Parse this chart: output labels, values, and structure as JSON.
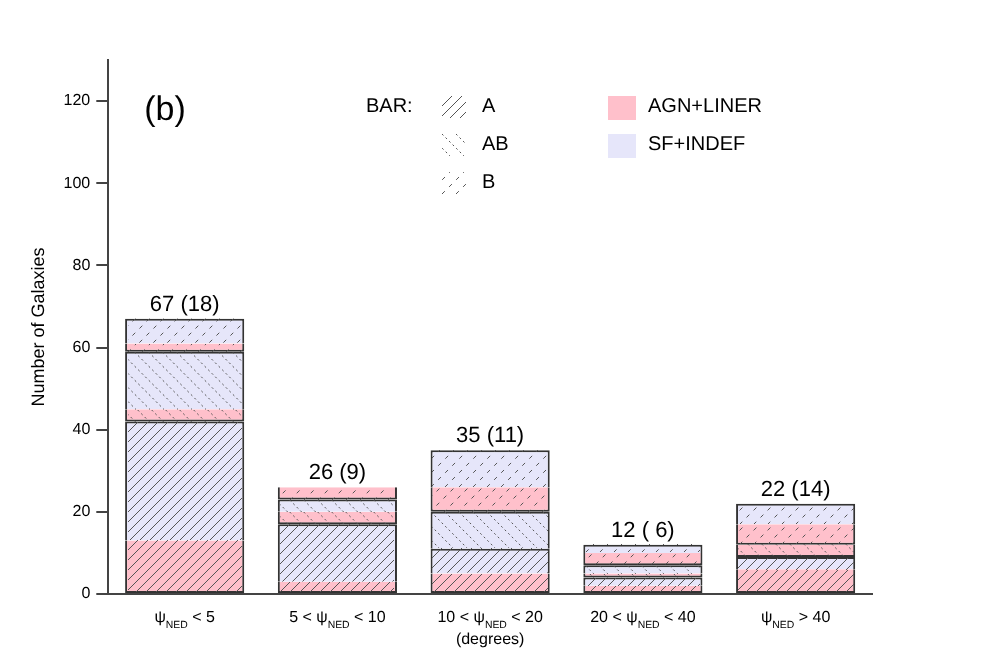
{
  "chart_data": {
    "type": "bar",
    "title": "(b)",
    "ylabel": "Number of Galaxies",
    "xlabel": "(degrees)",
    "categories": [
      "ψ$_{NED}$ < 5",
      "5 < ψ$_{NED}$ < 10",
      "10 < ψ$_{NED}$ < 20",
      "20 < ψ$_{NED}$ < 40",
      "ψ$_{NED}$ > 40"
    ],
    "stacked": true,
    "series": [
      {
        "color": "#ffc0cb",
        "values": [
          13,
          3,
          5,
          2,
          6
        ]
      },
      {
        "color": "#e6e6fa",
        "values": [
          29,
          14,
          6,
          2,
          3
        ]
      },
      {
        "color": "#ffc0cb",
        "values": [
          3,
          3,
          0,
          1,
          3
        ]
      },
      {
        "color": "#e6e6fa",
        "values": [
          14,
          3,
          9,
          2,
          0
        ]
      },
      {
        "color": "#ffc0cb",
        "values": [
          2,
          3,
          6,
          3,
          5
        ]
      },
      {
        "color": "#e6e6fa",
        "values": [
          6,
          0,
          9,
          2,
          5
        ]
      }
    ],
    "totals": [
      "67 (18)",
      "26 (9)",
      "35 (11)",
      "12 ( 6)",
      "22 (14)"
    ],
    "legend_title": "BAR:",
    "annotations": [
      "A",
      "AB",
      "B",
      "AGN+LINER",
      "SF+INDEF"
    ],
    "ylim": [
      0,
      130
    ],
    "yticks": [
      0,
      20,
      40,
      60,
      80,
      100,
      120
    ],
    "grid": false
  }
}
